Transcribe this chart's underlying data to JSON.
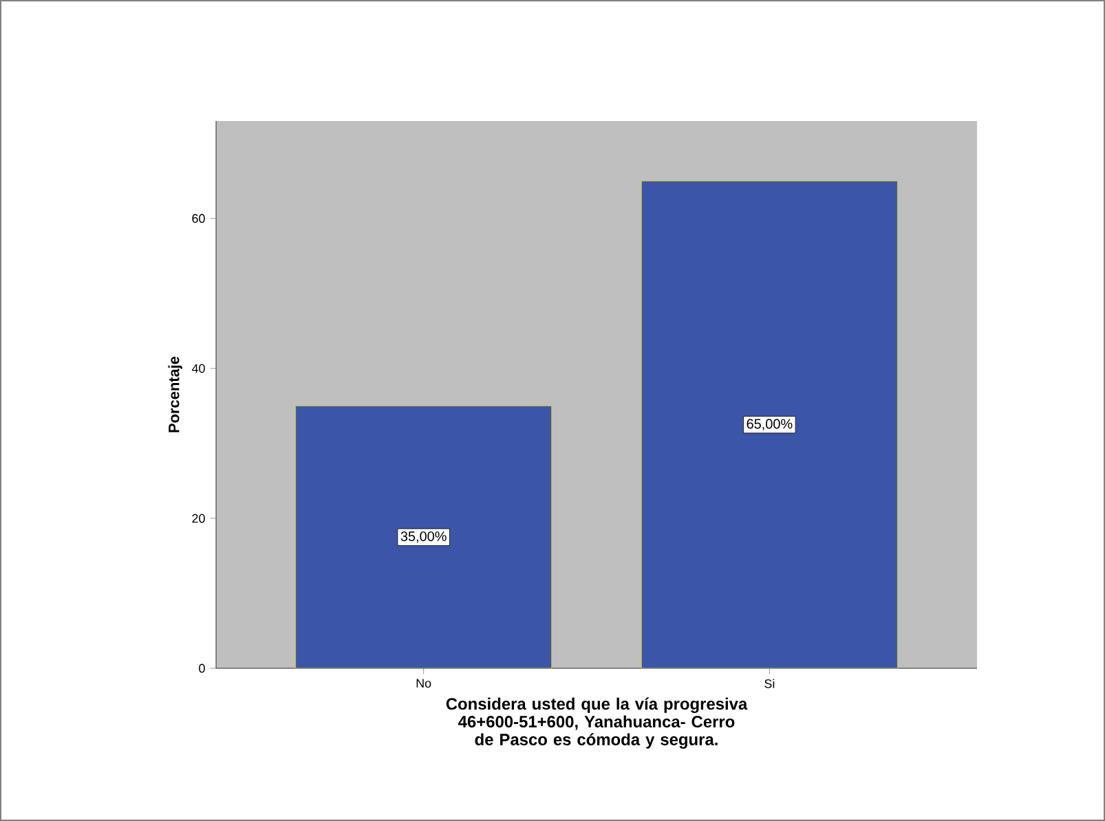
{
  "chart_data": {
    "type": "bar",
    "categories": [
      "No",
      "Si"
    ],
    "values": [
      35,
      65
    ],
    "value_labels": [
      "35,00%",
      "65,00%"
    ],
    "color": "#3b56a8",
    "ylim": [
      0,
      73
    ],
    "yticks": [
      0,
      20,
      40,
      60
    ],
    "xlabel": "Considera usted que la vía progresiva 46+600-51+600, Yanahuanca- Cerro de Pasco es cómoda y segura.",
    "ylabel": "Porcentaje"
  }
}
